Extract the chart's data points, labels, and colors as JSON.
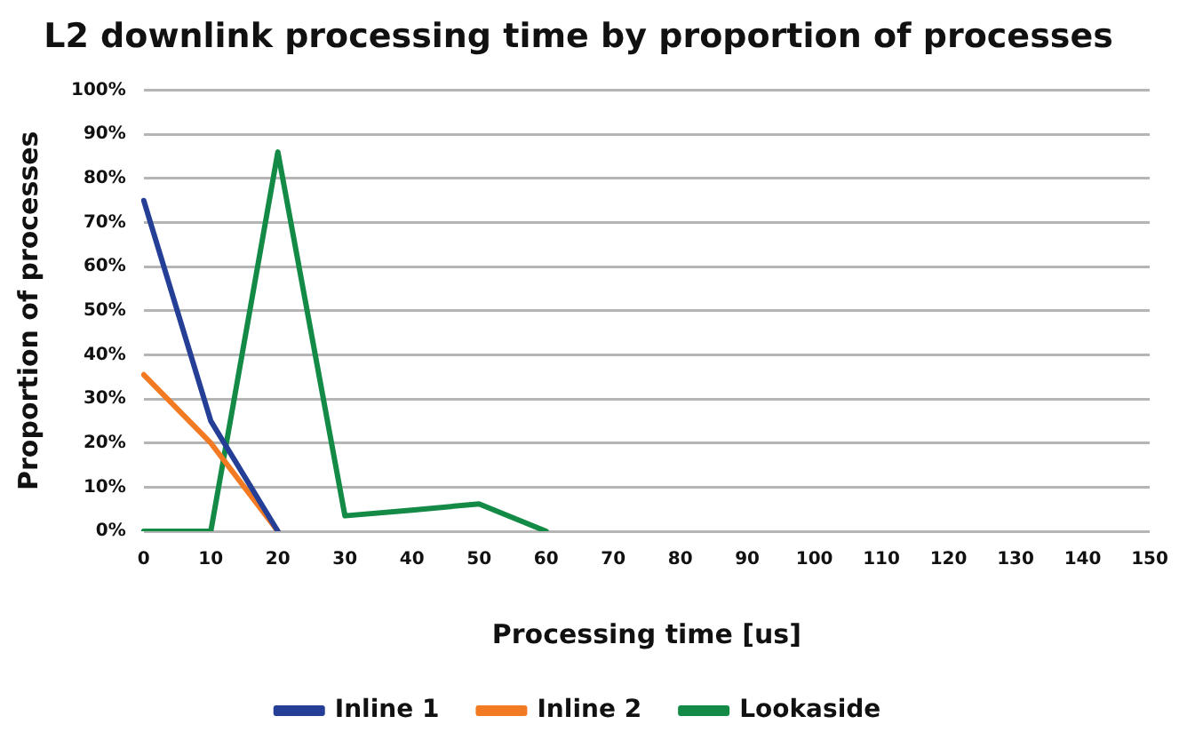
{
  "chart_data": {
    "type": "line",
    "title": "L2 downlink processing time by proportion of processes",
    "xlabel": "Processing time [us]",
    "ylabel": "Proportion of processes",
    "categories": [
      "0",
      "10",
      "20",
      "30",
      "40",
      "50",
      "60",
      "70",
      "80",
      "90",
      "100",
      "110",
      "120",
      "130",
      "140",
      "150"
    ],
    "series": [
      {
        "name": "Inline 1",
        "color": "#253f97",
        "values": [
          75,
          25,
          0,
          null,
          null,
          null,
          null,
          null,
          null,
          null,
          null,
          null,
          null,
          null,
          null,
          null
        ]
      },
      {
        "name": "Inline 2",
        "color": "#f27a22",
        "values": [
          35.5,
          20,
          0,
          null,
          null,
          null,
          null,
          null,
          null,
          null,
          null,
          null,
          null,
          null,
          null,
          null
        ]
      },
      {
        "name": "Lookaside",
        "color": "#138a45",
        "values": [
          0,
          0,
          86,
          3.5,
          4.8,
          6.2,
          0,
          null,
          null,
          null,
          null,
          null,
          null,
          null,
          null,
          null
        ]
      }
    ],
    "ylim": [
      0,
      100
    ],
    "yticks": [
      {
        "value": 0,
        "label": "0%"
      },
      {
        "value": 10,
        "label": "10%"
      },
      {
        "value": 20,
        "label": "20%"
      },
      {
        "value": 30,
        "label": "30%"
      },
      {
        "value": 40,
        "label": "40%"
      },
      {
        "value": 50,
        "label": "50%"
      },
      {
        "value": 60,
        "label": "60%"
      },
      {
        "value": 70,
        "label": "70%"
      },
      {
        "value": 80,
        "label": "80%"
      },
      {
        "value": 90,
        "label": "90%"
      },
      {
        "value": 100,
        "label": "100%"
      }
    ],
    "grid": "y",
    "legend": "bottom",
    "marker": "none",
    "line_style": "solid"
  }
}
